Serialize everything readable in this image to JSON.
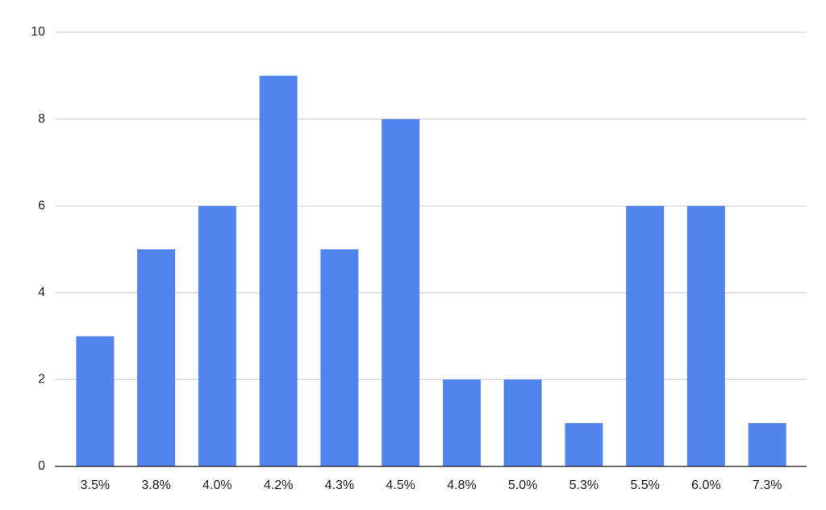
{
  "chart_data": {
    "type": "bar",
    "categories": [
      "3.5%",
      "3.8%",
      "4.0%",
      "4.2%",
      "4.3%",
      "4.5%",
      "4.8%",
      "5.0%",
      "5.3%",
      "5.5%",
      "6.0%",
      "7.3%"
    ],
    "values": [
      3,
      5,
      6,
      9,
      5,
      8,
      2,
      2,
      1,
      6,
      6,
      1
    ],
    "color": "#5185ec",
    "ylim": [
      0,
      10
    ],
    "yticks": [
      0,
      2,
      4,
      6,
      8,
      10
    ],
    "grid": true
  }
}
